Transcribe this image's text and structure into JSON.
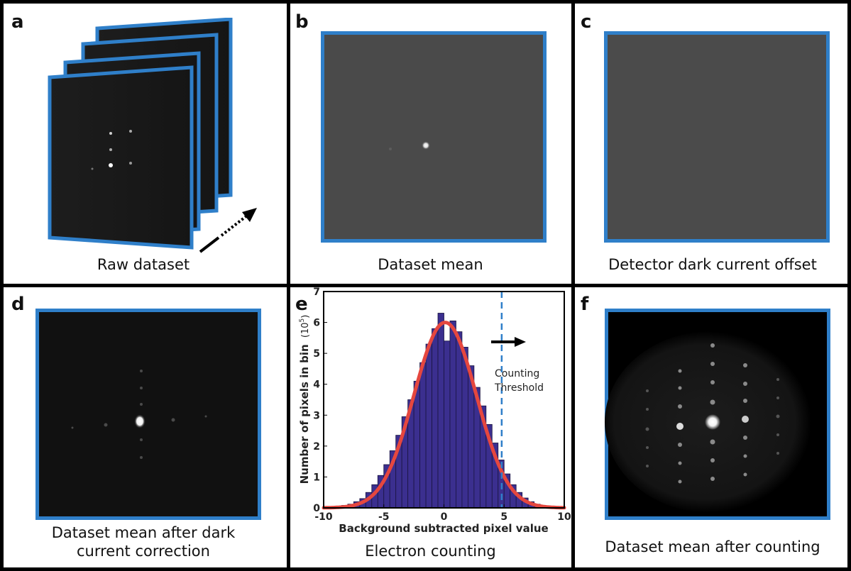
{
  "panels": {
    "a": {
      "label": "a",
      "caption": "Raw dataset"
    },
    "b": {
      "label": "b",
      "caption": "Dataset mean"
    },
    "c": {
      "label": "c",
      "caption": "Detector dark current offset"
    },
    "d": {
      "label": "d",
      "caption_line1": "Dataset mean after dark",
      "caption_line2": "current correction"
    },
    "e": {
      "label": "e",
      "caption": "Electron counting"
    },
    "f": {
      "label": "f",
      "caption": "Dataset mean after counting"
    }
  },
  "colors": {
    "frame_border": "#2f7fc9",
    "histogram_bar": "#3b2f8f",
    "fit_curve": "#e5473f",
    "threshold_line": "#2f7fc9"
  },
  "icons": {
    "arrow_a": "dashed-diagonal-arrow-icon",
    "arrow_e": "right-arrow-icon"
  },
  "chart_data": {
    "type": "bar",
    "xlabel": "Background subtracted pixel value",
    "ylabel": "Number of pixels in bin",
    "ylabel_unit": "(10",
    "ylabel_unit_exp": "5",
    "ylabel_unit_close": ")",
    "xlim": [
      -10,
      10
    ],
    "ylim": [
      0,
      7
    ],
    "xticks": [
      "-10",
      "-5",
      "0",
      "5",
      "10"
    ],
    "yticks": [
      "0",
      "1",
      "2",
      "3",
      "4",
      "5",
      "6",
      "7"
    ],
    "bin_width": 0.5,
    "bin_centers": [
      -8.75,
      -8.25,
      -7.75,
      -7.25,
      -6.75,
      -6.25,
      -5.75,
      -5.25,
      -4.75,
      -4.25,
      -3.75,
      -3.25,
      -2.75,
      -2.25,
      -1.75,
      -1.25,
      -0.75,
      -0.25,
      0.25,
      0.75,
      1.25,
      1.75,
      2.25,
      2.75,
      3.25,
      3.75,
      4.25,
      4.75,
      5.25,
      5.75,
      6.25,
      6.75,
      7.25,
      7.75,
      8.25,
      8.75
    ],
    "values": [
      0.05,
      0.08,
      0.12,
      0.2,
      0.3,
      0.5,
      0.75,
      1.05,
      1.4,
      1.85,
      2.35,
      2.95,
      3.5,
      4.1,
      4.7,
      5.3,
      5.8,
      6.3,
      5.4,
      6.05,
      5.7,
      5.2,
      4.6,
      3.9,
      3.3,
      2.7,
      2.1,
      1.55,
      1.1,
      0.75,
      0.5,
      0.32,
      0.2,
      0.12,
      0.07,
      0.04
    ],
    "fit": {
      "name": "gaussian",
      "amplitude": 6.0,
      "center": 0.1,
      "sigma": 2.6
    },
    "threshold": 4.8,
    "annotation_line1": "Counting",
    "annotation_line2": "Threshold"
  }
}
